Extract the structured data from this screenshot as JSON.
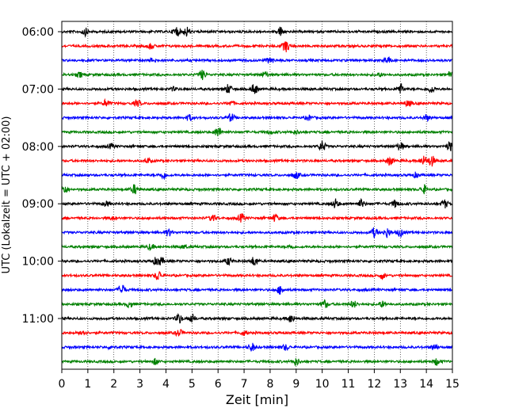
{
  "chart_data": {
    "type": "line",
    "title": "",
    "xlabel": "Zeit  [min]",
    "ylabel": "UTC (Lokalzeit = UTC + 02:00)",
    "xlim": [
      0,
      15
    ],
    "x_ticks": [
      "0",
      "1",
      "2",
      "3",
      "4",
      "5",
      "6",
      "7",
      "8",
      "9",
      "10",
      "11",
      "12",
      "13",
      "14",
      "15"
    ],
    "y_tick_labels": [
      "06:00",
      "07:00",
      "08:00",
      "09:00",
      "10:00",
      "11:00"
    ],
    "grid": "vertical dotted lines at every minute",
    "trace_interval_minutes": 15,
    "colors": [
      "#000000",
      "#ff0000",
      "#0000ff",
      "#008000"
    ],
    "traces": [
      {
        "start": "06:00",
        "color": "#000000",
        "events": [
          [
            0.9,
            0.6
          ],
          [
            4.4,
            0.9
          ],
          [
            4.8,
            0.8
          ],
          [
            8.4,
            0.8
          ]
        ]
      },
      {
        "start": "06:15",
        "color": "#ff0000",
        "events": [
          [
            8.6,
            1.0
          ],
          [
            3.4,
            0.5
          ]
        ]
      },
      {
        "start": "06:30",
        "color": "#0000ff",
        "events": [
          [
            3.5,
            0.4
          ],
          [
            8.0,
            0.6
          ],
          [
            12.5,
            0.6
          ]
        ]
      },
      {
        "start": "06:45",
        "color": "#008000",
        "events": [
          [
            0.7,
            0.4
          ],
          [
            5.4,
            0.8
          ],
          [
            7.8,
            0.5
          ],
          [
            12.2,
            0.3
          ],
          [
            14.9,
            0.5
          ]
        ]
      },
      {
        "start": "07:00",
        "color": "#000000",
        "events": [
          [
            4.3,
            0.3
          ],
          [
            6.4,
            0.8
          ],
          [
            7.4,
            0.9
          ],
          [
            13.0,
            0.9
          ],
          [
            14.2,
            0.6
          ]
        ]
      },
      {
        "start": "07:15",
        "color": "#ff0000",
        "events": [
          [
            1.7,
            0.6
          ],
          [
            2.9,
            0.5
          ],
          [
            6.5,
            0.4
          ],
          [
            13.3,
            0.5
          ]
        ]
      },
      {
        "start": "07:30",
        "color": "#0000ff",
        "events": [
          [
            4.9,
            0.5
          ],
          [
            6.5,
            0.7
          ],
          [
            9.5,
            0.4
          ],
          [
            14.0,
            0.5
          ]
        ]
      },
      {
        "start": "07:45",
        "color": "#008000",
        "events": [
          [
            6.0,
            0.9
          ],
          [
            8.0,
            0.3
          ],
          [
            9.0,
            0.3
          ]
        ]
      },
      {
        "start": "08:00",
        "color": "#000000",
        "events": [
          [
            10.0,
            0.9
          ],
          [
            13.0,
            0.7
          ],
          [
            14.9,
            0.8
          ],
          [
            1.9,
            0.4
          ]
        ]
      },
      {
        "start": "08:15",
        "color": "#ff0000",
        "events": [
          [
            3.3,
            0.4
          ],
          [
            12.6,
            0.7
          ],
          [
            13.9,
            0.8
          ],
          [
            14.2,
            0.9
          ]
        ]
      },
      {
        "start": "08:30",
        "color": "#0000ff",
        "events": [
          [
            3.9,
            0.6
          ],
          [
            9.0,
            0.6
          ],
          [
            13.6,
            0.4
          ]
        ]
      },
      {
        "start": "08:45",
        "color": "#008000",
        "events": [
          [
            0.1,
            0.7
          ],
          [
            2.8,
            0.8
          ],
          [
            13.9,
            0.7
          ]
        ]
      },
      {
        "start": "09:00",
        "color": "#000000",
        "events": [
          [
            1.7,
            0.4
          ],
          [
            10.5,
            0.8
          ],
          [
            11.5,
            0.7
          ],
          [
            12.8,
            0.6
          ],
          [
            14.7,
            0.7
          ]
        ]
      },
      {
        "start": "09:15",
        "color": "#ff0000",
        "events": [
          [
            5.8,
            0.6
          ],
          [
            6.9,
            0.7
          ],
          [
            8.2,
            0.6
          ],
          [
            2.0,
            0.3
          ]
        ]
      },
      {
        "start": "09:30",
        "color": "#0000ff",
        "events": [
          [
            4.1,
            0.6
          ],
          [
            12.0,
            0.8
          ],
          [
            12.5,
            0.8
          ],
          [
            13.0,
            0.7
          ]
        ]
      },
      {
        "start": "09:45",
        "color": "#008000",
        "events": [
          [
            3.4,
            0.5
          ],
          [
            4.7,
            0.3
          ],
          [
            8.8,
            0.3
          ]
        ]
      },
      {
        "start": "10:00",
        "color": "#000000",
        "events": [
          [
            3.6,
            0.5
          ],
          [
            3.8,
            0.6
          ],
          [
            6.4,
            0.6
          ],
          [
            7.4,
            0.8
          ]
        ]
      },
      {
        "start": "10:15",
        "color": "#ff0000",
        "events": [
          [
            3.7,
            0.9
          ],
          [
            12.3,
            0.5
          ]
        ]
      },
      {
        "start": "10:30",
        "color": "#0000ff",
        "events": [
          [
            2.3,
            1.0
          ],
          [
            8.4,
            0.7
          ]
        ]
      },
      {
        "start": "10:45",
        "color": "#008000",
        "events": [
          [
            2.6,
            0.5
          ],
          [
            10.1,
            0.7
          ],
          [
            11.2,
            0.6
          ],
          [
            12.3,
            0.5
          ]
        ]
      },
      {
        "start": "11:00",
        "color": "#000000",
        "events": [
          [
            4.5,
            0.8
          ],
          [
            5.0,
            0.7
          ],
          [
            8.8,
            0.7
          ]
        ]
      },
      {
        "start": "11:15",
        "color": "#ff0000",
        "events": [
          [
            0.8,
            0.5
          ],
          [
            4.5,
            0.6
          ],
          [
            7.0,
            0.4
          ]
        ]
      },
      {
        "start": "11:30",
        "color": "#0000ff",
        "events": [
          [
            1.9,
            0.3
          ],
          [
            7.3,
            0.7
          ],
          [
            8.6,
            0.5
          ],
          [
            14.3,
            0.5
          ]
        ]
      },
      {
        "start": "11:45",
        "color": "#008000",
        "events": [
          [
            3.6,
            0.5
          ],
          [
            9.0,
            0.6
          ],
          [
            14.4,
            0.6
          ]
        ]
      }
    ]
  }
}
